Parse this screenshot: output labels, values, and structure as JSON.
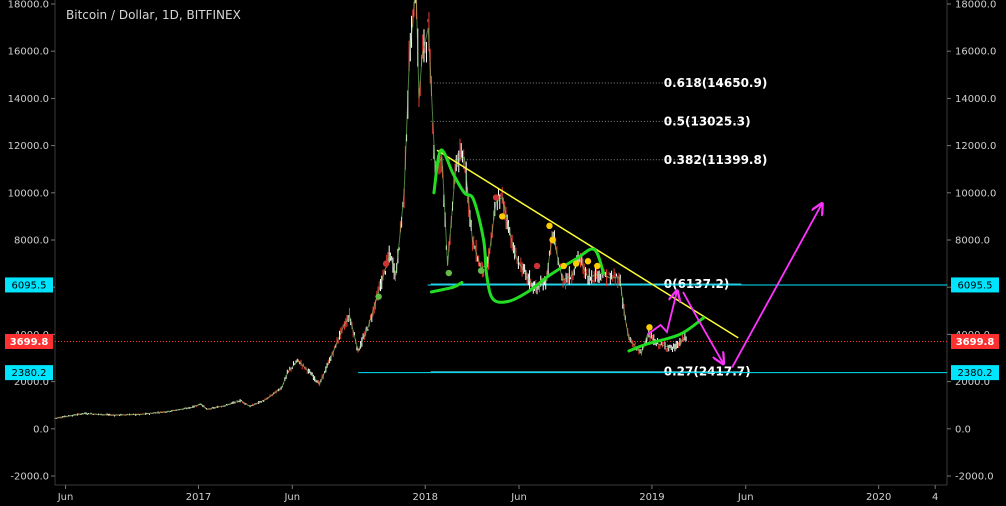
{
  "chart_data": {
    "type": "line",
    "title": "Bitcoin / Dollar, 1D, BITFINEX",
    "y_ticks": [
      18000,
      16000,
      14000,
      12000,
      10000,
      8000,
      6000,
      4000,
      2000,
      0,
      -2000
    ],
    "y_tick_labels": [
      "18000.0",
      "16000.0",
      "14000.0",
      "12000.0",
      "10000.0",
      "8000.0",
      "6000.0",
      "4000.0",
      "2000.0",
      "0.0",
      "-2000.0"
    ],
    "ylim": [
      -2000,
      18000
    ],
    "x_ticks": [
      {
        "x": "2016-06-01",
        "label": "Jun"
      },
      {
        "x": "2017-01-01",
        "label": "2017"
      },
      {
        "x": "2017-06-01",
        "label": "Jun"
      },
      {
        "x": "2018-01-01",
        "label": "2018"
      },
      {
        "x": "2018-06-01",
        "label": "Jun"
      },
      {
        "x": "2019-01-01",
        "label": "2019"
      },
      {
        "x": "2019-06-01",
        "label": "Jun"
      },
      {
        "x": "2020-01-01",
        "label": "2020"
      },
      {
        "x": "2020-04-01",
        "label": "4"
      }
    ],
    "xlim": [
      "2016-05-15",
      "2020-04-20"
    ],
    "price_series": [
      [
        "2016-05-15",
        450
      ],
      [
        "2016-07-01",
        650
      ],
      [
        "2016-08-15",
        580
      ],
      [
        "2016-10-01",
        610
      ],
      [
        "2016-11-15",
        740
      ],
      [
        "2016-12-20",
        900
      ],
      [
        "2017-01-05",
        1050
      ],
      [
        "2017-01-15",
        820
      ],
      [
        "2017-02-15",
        1000
      ],
      [
        "2017-03-10",
        1200
      ],
      [
        "2017-03-25",
        950
      ],
      [
        "2017-04-20",
        1250
      ],
      [
        "2017-05-15",
        1750
      ],
      [
        "2017-05-25",
        2400
      ],
      [
        "2017-06-10",
        2900
      ],
      [
        "2017-06-25",
        2500
      ],
      [
        "2017-07-15",
        1900
      ],
      [
        "2017-08-05",
        3200
      ],
      [
        "2017-08-20",
        4200
      ],
      [
        "2017-09-01",
        4800
      ],
      [
        "2017-09-15",
        3300
      ],
      [
        "2017-10-01",
        4300
      ],
      [
        "2017-10-20",
        6000
      ],
      [
        "2017-11-05",
        7400
      ],
      [
        "2017-11-15",
        6500
      ],
      [
        "2017-11-28",
        10000
      ],
      [
        "2017-12-07",
        16000
      ],
      [
        "2017-12-12",
        17200
      ],
      [
        "2017-12-17",
        19000
      ],
      [
        "2017-12-22",
        14000
      ],
      [
        "2017-12-27",
        15800
      ],
      [
        "2018-01-06",
        17000
      ],
      [
        "2018-01-17",
        11000
      ],
      [
        "2018-01-28",
        11500
      ],
      [
        "2018-02-06",
        6900
      ],
      [
        "2018-02-20",
        11400
      ],
      [
        "2018-03-05",
        11500
      ],
      [
        "2018-03-18",
        8000
      ],
      [
        "2018-04-01",
        6800
      ],
      [
        "2018-04-12",
        7000
      ],
      [
        "2018-04-25",
        9600
      ],
      [
        "2018-05-05",
        9800
      ],
      [
        "2018-05-25",
        7400
      ],
      [
        "2018-06-12",
        6500
      ],
      [
        "2018-06-29",
        5900
      ],
      [
        "2018-07-15",
        6300
      ],
      [
        "2018-07-25",
        8300
      ],
      [
        "2018-08-10",
        6300
      ],
      [
        "2018-08-25",
        6500
      ],
      [
        "2018-09-05",
        7300
      ],
      [
        "2018-09-20",
        6400
      ],
      [
        "2018-10-10",
        6600
      ],
      [
        "2018-10-25",
        6400
      ],
      [
        "2018-11-10",
        6400
      ],
      [
        "2018-11-20",
        4500
      ],
      [
        "2018-11-25",
        3800
      ],
      [
        "2018-12-15",
        3200
      ],
      [
        "2018-12-25",
        4000
      ],
      [
        "2019-01-10",
        3600
      ],
      [
        "2019-02-05",
        3400
      ],
      [
        "2019-02-25",
        3900
      ]
    ],
    "fib_levels": [
      {
        "label": "0.618(14650.9)",
        "value": 14650.9
      },
      {
        "label": "0.5(13025.3)",
        "value": 13025.3
      },
      {
        "label": "0.382(11399.8)",
        "value": 11399.8
      },
      {
        "label": "0(6137.2)",
        "value": 6137.2
      },
      {
        "label": "0.27(2417.7)",
        "value": 2417.7
      }
    ],
    "horizontal_lines": [
      {
        "value": 6095.5,
        "label": "6095.5",
        "color": "#00e5ff"
      },
      {
        "value": 3699.8,
        "label": "3699.8",
        "color": "#ff3030"
      },
      {
        "value": 2380.2,
        "label": "2380.2",
        "color": "#00e5ff"
      }
    ],
    "trendline": {
      "color": "#ffff33",
      "points": [
        [
          "2018-01-20",
          11800
        ],
        [
          "2019-05-20",
          3850
        ]
      ]
    },
    "green_curves": [
      [
        [
          "2018-01-11",
          5800
        ],
        [
          "2018-02-15",
          6000
        ],
        [
          "2018-03-01",
          6200
        ]
      ],
      [
        [
          "2018-01-15",
          10000
        ],
        [
          "2018-01-26",
          11800
        ],
        [
          "2018-02-15",
          10800
        ],
        [
          "2018-03-05",
          10000
        ],
        [
          "2018-03-20",
          9700
        ],
        [
          "2018-04-05",
          8000
        ],
        [
          "2018-04-10",
          6500
        ],
        [
          "2018-04-20",
          5500
        ],
        [
          "2018-05-15",
          5400
        ],
        [
          "2018-06-15",
          5800
        ],
        [
          "2018-07-20",
          6500
        ],
        [
          "2018-09-01",
          7200
        ],
        [
          "2018-09-30",
          7600
        ],
        [
          "2018-10-15",
          6600
        ]
      ],
      [
        [
          "2018-11-25",
          3300
        ],
        [
          "2018-12-25",
          3600
        ],
        [
          "2019-02-15",
          4000
        ],
        [
          "2019-03-25",
          4700
        ]
      ]
    ],
    "arrows": {
      "color": "#ff33ff",
      "paths": [
        [
          [
            "2018-12-25",
            4000
          ],
          [
            "2019-01-15",
            4400
          ],
          [
            "2019-01-25",
            4100
          ],
          [
            "2019-02-10",
            5800
          ]
        ],
        [
          [
            "2019-02-20",
            5800
          ],
          [
            "2019-03-15",
            4700
          ],
          [
            "2019-04-25",
            2800
          ]
        ],
        [
          [
            "2019-05-10",
            2600
          ],
          [
            "2019-10-01",
            9500
          ]
        ]
      ]
    },
    "markers": [
      {
        "x": "2017-10-18",
        "y": 5600,
        "color": "#66bb44"
      },
      {
        "x": "2017-10-30",
        "y": 7000,
        "color": "#cc3333"
      },
      {
        "x": "2018-02-08",
        "y": 6600,
        "color": "#66bb44"
      },
      {
        "x": "2018-04-01",
        "y": 6700,
        "color": "#66bb44"
      },
      {
        "x": "2018-04-25",
        "y": 9800,
        "color": "#cc3333"
      },
      {
        "x": "2018-05-05",
        "y": 9000,
        "color": "#ffcc00"
      },
      {
        "x": "2018-06-30",
        "y": 6900,
        "color": "#cc3333"
      },
      {
        "x": "2018-07-20",
        "y": 8600,
        "color": "#ffcc00"
      },
      {
        "x": "2018-07-25",
        "y": 8000,
        "color": "#ffcc00"
      },
      {
        "x": "2018-08-12",
        "y": 6900,
        "color": "#ffcc00"
      },
      {
        "x": "2018-09-01",
        "y": 7000,
        "color": "#ffcc00"
      },
      {
        "x": "2018-09-20",
        "y": 7100,
        "color": "#ffcc00"
      },
      {
        "x": "2018-10-05",
        "y": 6900,
        "color": "#ffcc00"
      },
      {
        "x": "2018-12-28",
        "y": 4300,
        "color": "#ffcc00"
      }
    ],
    "grid": false
  }
}
